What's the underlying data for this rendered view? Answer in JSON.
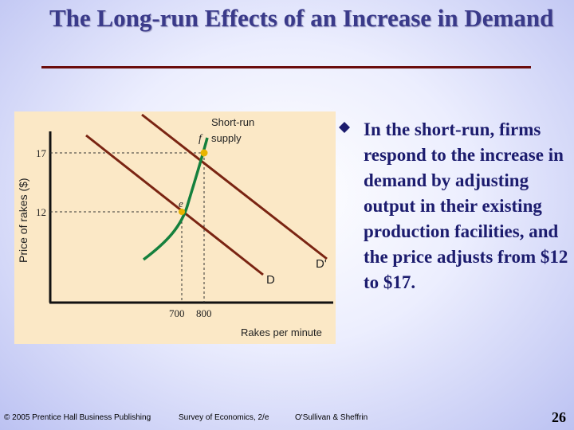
{
  "slide": {
    "title": "The Long-run Effects of an Increase in Demand",
    "bullet_text": "In the short-run, firms respond to the increase in demand by adjusting output in their existing production facilities, and the price adjusts from $12 to $17.",
    "page_number": "26"
  },
  "footer": {
    "copyright": "© 2005 Prentice Hall Business Publishing",
    "book": "Survey of Economics, 2/e",
    "authors": "O'Sullivan & Sheffrin"
  },
  "diagram": {
    "y_axis_label": "Price of rakes ($)",
    "x_axis_label": "Rakes per minute",
    "y_ticks": [
      "17",
      "12"
    ],
    "x_ticks": [
      "700",
      "800"
    ],
    "supply_label_line1": "Short-run",
    "supply_label_line2": "supply",
    "demand_label": "D",
    "new_demand_label": "D'",
    "point_f": "f",
    "point_e": "e",
    "colors": {
      "panel": "#fbe8c6",
      "demand": "#7a2412",
      "supply": "#15803d",
      "point": "#e8b400"
    }
  }
}
